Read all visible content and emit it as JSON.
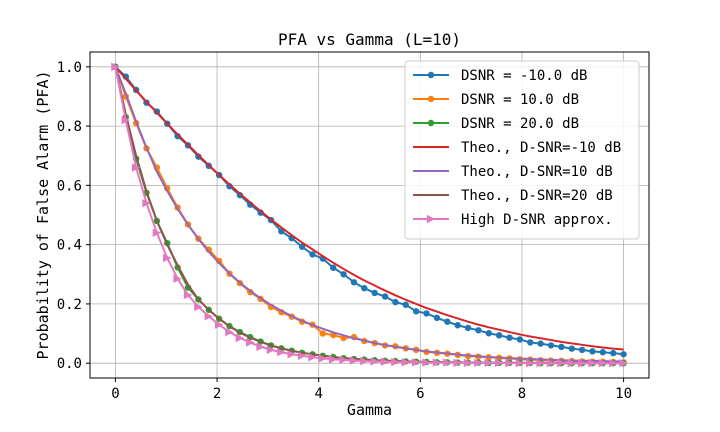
{
  "chart_data": {
    "type": "line",
    "title": "PFA vs Gamma (L=10)",
    "xlabel": "Gamma",
    "ylabel": "Probability of False Alarm (PFA)",
    "xlim": [
      -0.5,
      10.5
    ],
    "ylim": [
      -0.05,
      1.05
    ],
    "xticks": [
      0,
      2,
      4,
      6,
      8,
      10
    ],
    "xtick_labels": [
      "0",
      "2",
      "4",
      "6",
      "8",
      "10"
    ],
    "yticks": [
      0.0,
      0.2,
      0.4,
      0.6,
      0.8,
      1.0
    ],
    "ytick_labels": [
      "0.0",
      "0.2",
      "0.4",
      "0.6",
      "0.8",
      "1.0"
    ],
    "grid": true,
    "legend_position": "top-right",
    "x": [
      0,
      0.204,
      0.408,
      0.612,
      0.816,
      1.02,
      1.224,
      1.429,
      1.633,
      1.837,
      2.041,
      2.245,
      2.449,
      2.653,
      2.857,
      3.061,
      3.265,
      3.469,
      3.673,
      3.878,
      4.082,
      4.286,
      4.49,
      4.694,
      4.898,
      5.102,
      5.306,
      5.51,
      5.714,
      5.918,
      6.122,
      6.327,
      6.531,
      6.735,
      6.939,
      7.143,
      7.347,
      7.551,
      7.755,
      7.959,
      8.163,
      8.367,
      8.571,
      8.776,
      8.98,
      9.184,
      9.388,
      9.592,
      9.796,
      10.0
    ],
    "series": [
      {
        "name": "DSNR = -10.0 dB",
        "color": "#1f77b4",
        "marker": "circle",
        "values": [
          1.0,
          0.967,
          0.922,
          0.879,
          0.849,
          0.808,
          0.766,
          0.735,
          0.697,
          0.666,
          0.635,
          0.597,
          0.567,
          0.535,
          0.508,
          0.483,
          0.445,
          0.422,
          0.393,
          0.367,
          0.353,
          0.322,
          0.3,
          0.273,
          0.253,
          0.237,
          0.225,
          0.206,
          0.197,
          0.175,
          0.168,
          0.153,
          0.14,
          0.128,
          0.119,
          0.111,
          0.101,
          0.094,
          0.086,
          0.08,
          0.07,
          0.066,
          0.06,
          0.055,
          0.049,
          0.045,
          0.04,
          0.037,
          0.034,
          0.03
        ]
      },
      {
        "name": "DSNR = 10.0 dB",
        "color": "#ff7f0e",
        "marker": "circle",
        "values": [
          1.0,
          0.9,
          0.81,
          0.725,
          0.66,
          0.59,
          0.525,
          0.468,
          0.42,
          0.383,
          0.345,
          0.302,
          0.27,
          0.24,
          0.217,
          0.19,
          0.172,
          0.157,
          0.14,
          0.13,
          0.1,
          0.095,
          0.085,
          0.088,
          0.075,
          0.068,
          0.06,
          0.057,
          0.05,
          0.045,
          0.038,
          0.035,
          0.032,
          0.028,
          0.024,
          0.022,
          0.02,
          0.018,
          0.016,
          0.013,
          0.012,
          0.01,
          0.009,
          0.008,
          0.007,
          0.006,
          0.005,
          0.005,
          0.004,
          0.003
        ]
      },
      {
        "name": "DSNR = 20.0 dB",
        "color": "#2ca02c",
        "marker": "circle",
        "values": [
          1.0,
          0.83,
          0.69,
          0.575,
          0.48,
          0.405,
          0.323,
          0.255,
          0.215,
          0.18,
          0.15,
          0.125,
          0.105,
          0.088,
          0.073,
          0.06,
          0.05,
          0.042,
          0.035,
          0.03,
          0.025,
          0.021,
          0.017,
          0.014,
          0.012,
          0.01,
          0.008,
          0.007,
          0.006,
          0.005,
          0.004,
          0.003,
          0.003,
          0.002,
          0.002,
          0.002,
          0.001,
          0.001,
          0.001,
          0.001,
          0.001,
          0.0,
          0.0,
          0.0,
          0.0,
          0.0,
          0.0,
          0.0,
          0.0,
          0.0
        ]
      },
      {
        "name": "Theo., D-SNR=-10 dB",
        "color": "#d62728",
        "marker": "none",
        "values": [
          1.0,
          0.96,
          0.92,
          0.882,
          0.845,
          0.808,
          0.772,
          0.737,
          0.702,
          0.668,
          0.635,
          0.603,
          0.572,
          0.542,
          0.513,
          0.485,
          0.458,
          0.432,
          0.407,
          0.384,
          0.361,
          0.339,
          0.318,
          0.298,
          0.279,
          0.262,
          0.245,
          0.229,
          0.214,
          0.2,
          0.186,
          0.174,
          0.162,
          0.151,
          0.14,
          0.13,
          0.121,
          0.113,
          0.105,
          0.097,
          0.09,
          0.084,
          0.078,
          0.072,
          0.067,
          0.062,
          0.057,
          0.053,
          0.049,
          0.046
        ]
      },
      {
        "name": "Theo., D-SNR=10 dB",
        "color": "#9467bd",
        "marker": "none",
        "values": [
          1.0,
          0.91,
          0.815,
          0.727,
          0.646,
          0.581,
          0.521,
          0.467,
          0.419,
          0.376,
          0.338,
          0.303,
          0.272,
          0.244,
          0.219,
          0.197,
          0.177,
          0.159,
          0.143,
          0.129,
          0.116,
          0.104,
          0.094,
          0.084,
          0.076,
          0.068,
          0.061,
          0.055,
          0.05,
          0.045,
          0.04,
          0.036,
          0.033,
          0.029,
          0.026,
          0.024,
          0.021,
          0.019,
          0.017,
          0.016,
          0.014,
          0.013,
          0.011,
          0.01,
          0.009,
          0.008,
          0.008,
          0.007,
          0.006,
          0.006
        ]
      },
      {
        "name": "Theo., D-SNR=20 dB",
        "color": "#8c564b",
        "marker": "none",
        "values": [
          1.0,
          0.84,
          0.7,
          0.58,
          0.48,
          0.4,
          0.33,
          0.265,
          0.215,
          0.18,
          0.15,
          0.124,
          0.103,
          0.086,
          0.072,
          0.06,
          0.05,
          0.042,
          0.035,
          0.03,
          0.025,
          0.021,
          0.017,
          0.015,
          0.012,
          0.01,
          0.009,
          0.007,
          0.006,
          0.005,
          0.004,
          0.004,
          0.003,
          0.003,
          0.002,
          0.002,
          0.002,
          0.001,
          0.001,
          0.001,
          0.001,
          0.001,
          0.001,
          0.0,
          0.0,
          0.0,
          0.0,
          0.0,
          0.0,
          0.0
        ]
      },
      {
        "name": "High D-SNR approx.",
        "color": "#e377c2",
        "marker": "triangle-right",
        "values": [
          1.0,
          0.82,
          0.66,
          0.54,
          0.44,
          0.355,
          0.285,
          0.23,
          0.19,
          0.158,
          0.13,
          0.105,
          0.085,
          0.07,
          0.055,
          0.045,
          0.037,
          0.03,
          0.025,
          0.02,
          0.016,
          0.013,
          0.011,
          0.009,
          0.007,
          0.006,
          0.005,
          0.004,
          0.003,
          0.003,
          0.002,
          0.002,
          0.002,
          0.001,
          0.001,
          0.001,
          0.001,
          0.001,
          0.0,
          0.0,
          0.0,
          0.0,
          0.0,
          0.0,
          0.0,
          0.0,
          0.0,
          0.0,
          0.0,
          0.0
        ]
      }
    ]
  }
}
